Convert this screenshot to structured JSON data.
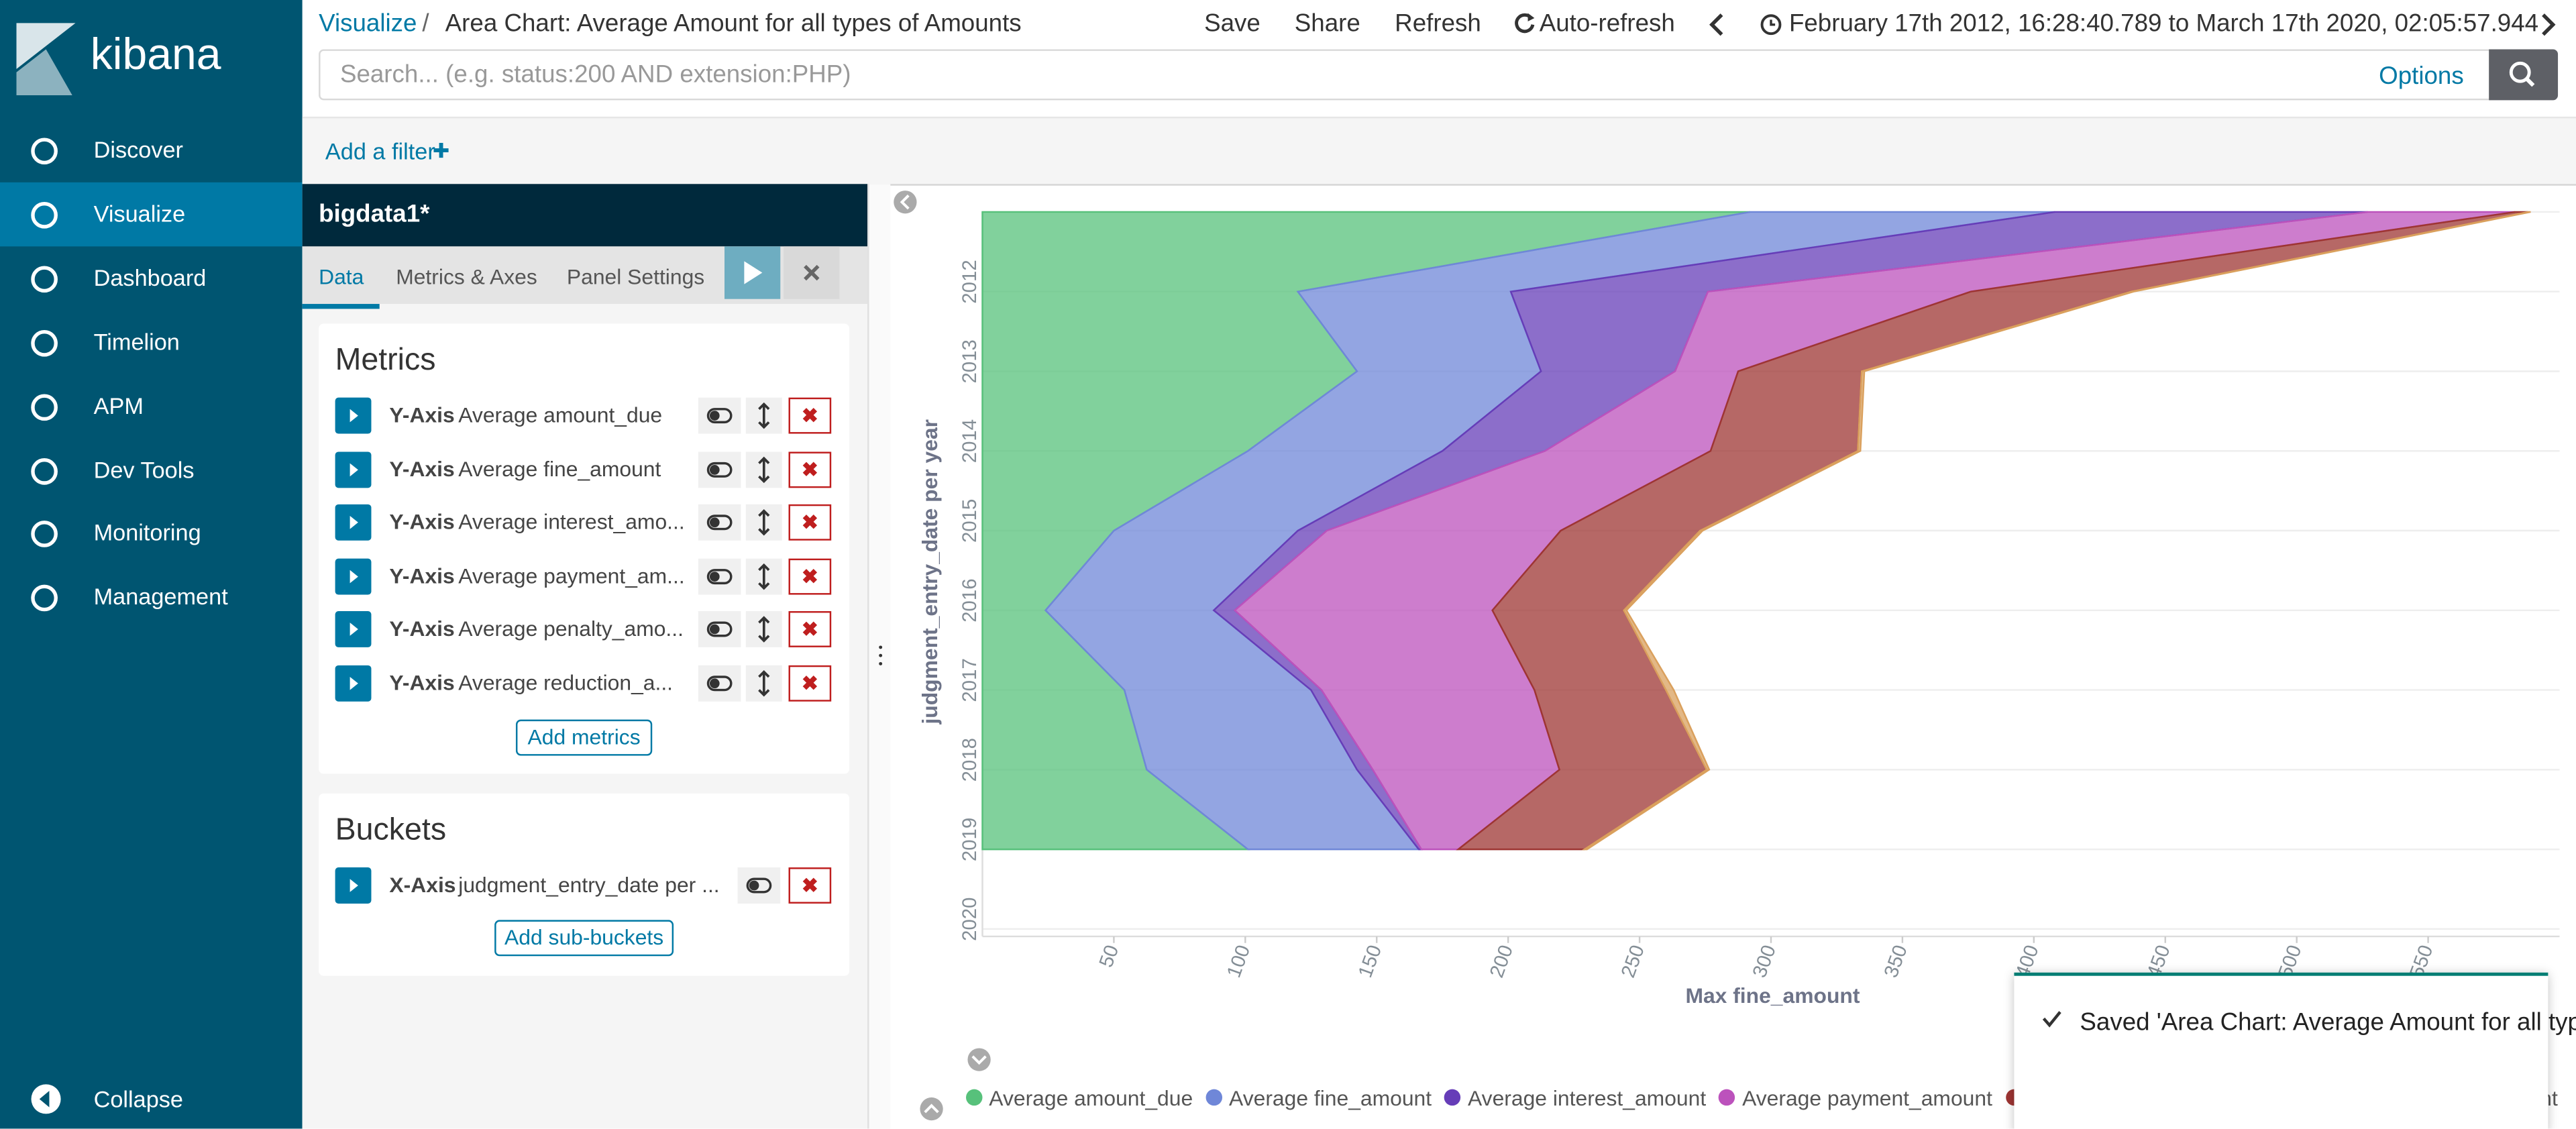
{
  "sidebar": {
    "brand": "kibana",
    "nav": [
      "Discover",
      "Visualize",
      "Dashboard",
      "Timelion",
      "APM",
      "Dev Tools",
      "Monitoring",
      "Management"
    ],
    "active": 1,
    "collapse": "Collapse"
  },
  "header": {
    "breadcrumb": "Visualize",
    "separator": "/",
    "title": "Area Chart: Average Amount for all types of Amounts",
    "actions": [
      "Save",
      "Share",
      "Refresh",
      "Auto-refresh"
    ],
    "time_range": "February 17th 2012, 16:28:40.789 to March 17th 2020, 02:05:57.944",
    "search_placeholder": "Search... (e.g. status:200 AND extension:PHP)",
    "options": "Options",
    "add_filter": "Add a filter"
  },
  "editor": {
    "index": "bigdata1*",
    "tabs": [
      "Data",
      "Metrics & Axes",
      "Panel Settings"
    ],
    "metrics_title": "Metrics",
    "metrics": [
      {
        "axis": "Y-Axis",
        "label": "Average amount_due"
      },
      {
        "axis": "Y-Axis",
        "label": "Average fine_amount"
      },
      {
        "axis": "Y-Axis",
        "label": "Average interest_amo..."
      },
      {
        "axis": "Y-Axis",
        "label": "Average payment_am..."
      },
      {
        "axis": "Y-Axis",
        "label": "Average penalty_amo..."
      },
      {
        "axis": "Y-Axis",
        "label": "Average reduction_a..."
      }
    ],
    "add_metrics": "Add metrics",
    "buckets_title": "Buckets",
    "buckets": [
      {
        "axis": "X-Axis",
        "label": "judgment_entry_date per ..."
      }
    ],
    "add_sub_buckets": "Add sub-buckets"
  },
  "chart_data": {
    "type": "area",
    "stacked": true,
    "orientation": "horizontal",
    "category_axis_label": "judgment_entry_date per year",
    "value_axis_label": "Max fine_amount",
    "categories": [
      null,
      "2012",
      "2013",
      "2014",
      "2015",
      "2016",
      "2017",
      "2018",
      "2019",
      "2020"
    ],
    "xlim": [
      0,
      600
    ],
    "xticks": [
      50,
      100,
      150,
      200,
      250,
      300,
      350,
      400,
      450,
      500,
      550
    ],
    "grid": true,
    "series": [
      {
        "name": "Average amount_due",
        "color": "#57c17b",
        "values": [
          292,
          120,
          142.5,
          101,
          50,
          24,
          54,
          62.5,
          101,
          null
        ]
      },
      {
        "name": "Average fine_amount",
        "color": "#6f87d8",
        "values": [
          116,
          81,
          70,
          74,
          70,
          64,
          71,
          80,
          65,
          null
        ]
      },
      {
        "name": "Average interest_amount",
        "color": "#663db8",
        "values": [
          119,
          75,
          51,
          39,
          11,
          8,
          4,
          6,
          1,
          null
        ]
      },
      {
        "name": "Average payment_amount",
        "color": "#bc52bc",
        "values": [
          56,
          100,
          24,
          63,
          89,
          98,
          81,
          71,
          14,
          null
        ]
      },
      {
        "name": "Average penalty_amount",
        "color": "#9e3533",
        "values": [
          5,
          61,
          47,
          56,
          53,
          50,
          50,
          56,
          48,
          null
        ]
      },
      {
        "name": "Average reduction_amount",
        "color": "#daa05d",
        "values": [
          1,
          1,
          1,
          1,
          1,
          1,
          3,
          1,
          1,
          null
        ]
      }
    ]
  },
  "toast": "Saved 'Area Chart: Average Amount for all types of Amounts'"
}
